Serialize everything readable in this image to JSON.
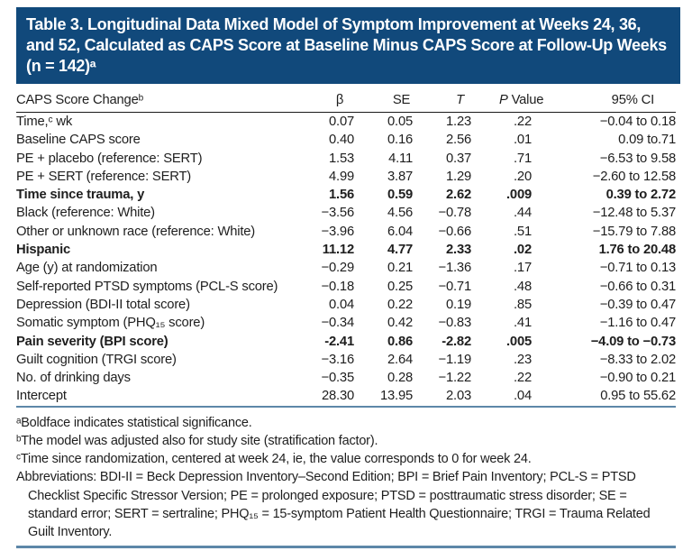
{
  "colors": {
    "banner_bg": "#11497b",
    "banner_text": "#ffffff",
    "header_rule": "#1a1a1a",
    "accent_rule": "#5d87a8",
    "body_text": "#1e1e1e"
  },
  "title": "Table 3. Longitudinal Data Mixed Model of Symptom Improvement at Weeks 24, 36, and 52, Calculated as CAPS Score at Baseline Minus CAPS Score at Follow-Up Weeks (n = 142)ᵃ",
  "table": {
    "columns": [
      "CAPS Score Changeᵇ",
      "β",
      "SE",
      "T",
      "P Value",
      "95% CI"
    ],
    "rows": [
      {
        "label": "Time,ᶜ wk",
        "beta": "0.07",
        "se": "0.05",
        "t": "1.23",
        "p": ".22",
        "ci": "−0.04 to 0.18",
        "bold": false
      },
      {
        "label": "Baseline CAPS score",
        "beta": "0.40",
        "se": "0.16",
        "t": "2.56",
        "p": ".01",
        "ci": "0.09 to.71",
        "bold": false
      },
      {
        "label": "PE + placebo (reference: SERT)",
        "beta": "1.53",
        "se": "4.11",
        "t": "0.37",
        "p": ".71",
        "ci": "−6.53 to 9.58",
        "bold": false
      },
      {
        "label": "PE + SERT (reference: SERT)",
        "beta": "4.99",
        "se": "3.87",
        "t": "1.29",
        "p": ".20",
        "ci": "−2.60 to 12.58",
        "bold": false
      },
      {
        "label": "Time since trauma, y",
        "beta": "1.56",
        "se": "0.59",
        "t": "2.62",
        "p": ".009",
        "ci": "0.39 to 2.72",
        "bold": true
      },
      {
        "label": "Black (reference: White)",
        "beta": "−3.56",
        "se": "4.56",
        "t": "−0.78",
        "p": ".44",
        "ci": "−12.48 to 5.37",
        "bold": false
      },
      {
        "label": "Other or unknown race (reference: White)",
        "beta": "−3.96",
        "se": "6.04",
        "t": "−0.66",
        "p": ".51",
        "ci": "−15.79 to 7.88",
        "bold": false
      },
      {
        "label": "Hispanic",
        "beta": "11.12",
        "se": "4.77",
        "t": "2.33",
        "p": ".02",
        "ci": "1.76 to 20.48",
        "bold": true
      },
      {
        "label": "Age (y) at randomization",
        "beta": "−0.29",
        "se": "0.21",
        "t": "−1.36",
        "p": ".17",
        "ci": "−0.71 to 0.13",
        "bold": false
      },
      {
        "label": "Self-reported PTSD symptoms (PCL-S score)",
        "beta": "−0.18",
        "se": "0.25",
        "t": "−0.71",
        "p": ".48",
        "ci": "−0.66 to 0.31",
        "bold": false
      },
      {
        "label": "Depression (BDI-II total score)",
        "beta": "0.04",
        "se": "0.22",
        "t": "0.19",
        "p": ".85",
        "ci": "−0.39 to 0.47",
        "bold": false
      },
      {
        "label": "Somatic symptom (PHQ₁₅ score)",
        "beta": "−0.34",
        "se": "0.42",
        "t": "−0.83",
        "p": ".41",
        "ci": "−1.16 to 0.47",
        "bold": false
      },
      {
        "label": "Pain severity (BPI score)",
        "beta": "-2.41",
        "se": "0.86",
        "t": "-2.82",
        "p": ".005",
        "ci": "−4.09 to −0.73",
        "bold": true
      },
      {
        "label": "Guilt cognition (TRGI score)",
        "beta": "−3.16",
        "se": "2.64",
        "t": "−1.19",
        "p": ".23",
        "ci": "−8.33 to 2.02",
        "bold": false
      },
      {
        "label": "No. of drinking days",
        "beta": "−0.35",
        "se": "0.28",
        "t": "−1.22",
        "p": ".22",
        "ci": "−0.90 to 0.21",
        "bold": false
      },
      {
        "label": "Intercept",
        "beta": "28.30",
        "se": "13.95",
        "t": "2.03",
        "p": ".04",
        "ci": "0.95 to 55.62",
        "bold": false
      }
    ]
  },
  "footnotes": [
    "ᵃBoldface indicates statistical significance.",
    "ᵇThe model was adjusted also for study site (stratification factor).",
    "ᶜTime since randomization, centered at week 24, ie, the value corresponds to 0 for week 24.",
    "Abbreviations: BDI-II = Beck Depression Inventory–Second Edition; BPI = Brief Pain Inventory; PCL-S = PTSD Checklist Specific Stressor Version; PE = prolonged exposure; PTSD = posttraumatic stress disorder; SE = standard error; SERT = sertraline; PHQ₁₅ = 15-symptom Patient Health Questionnaire; TRGI = Trauma Related Guilt Inventory."
  ]
}
